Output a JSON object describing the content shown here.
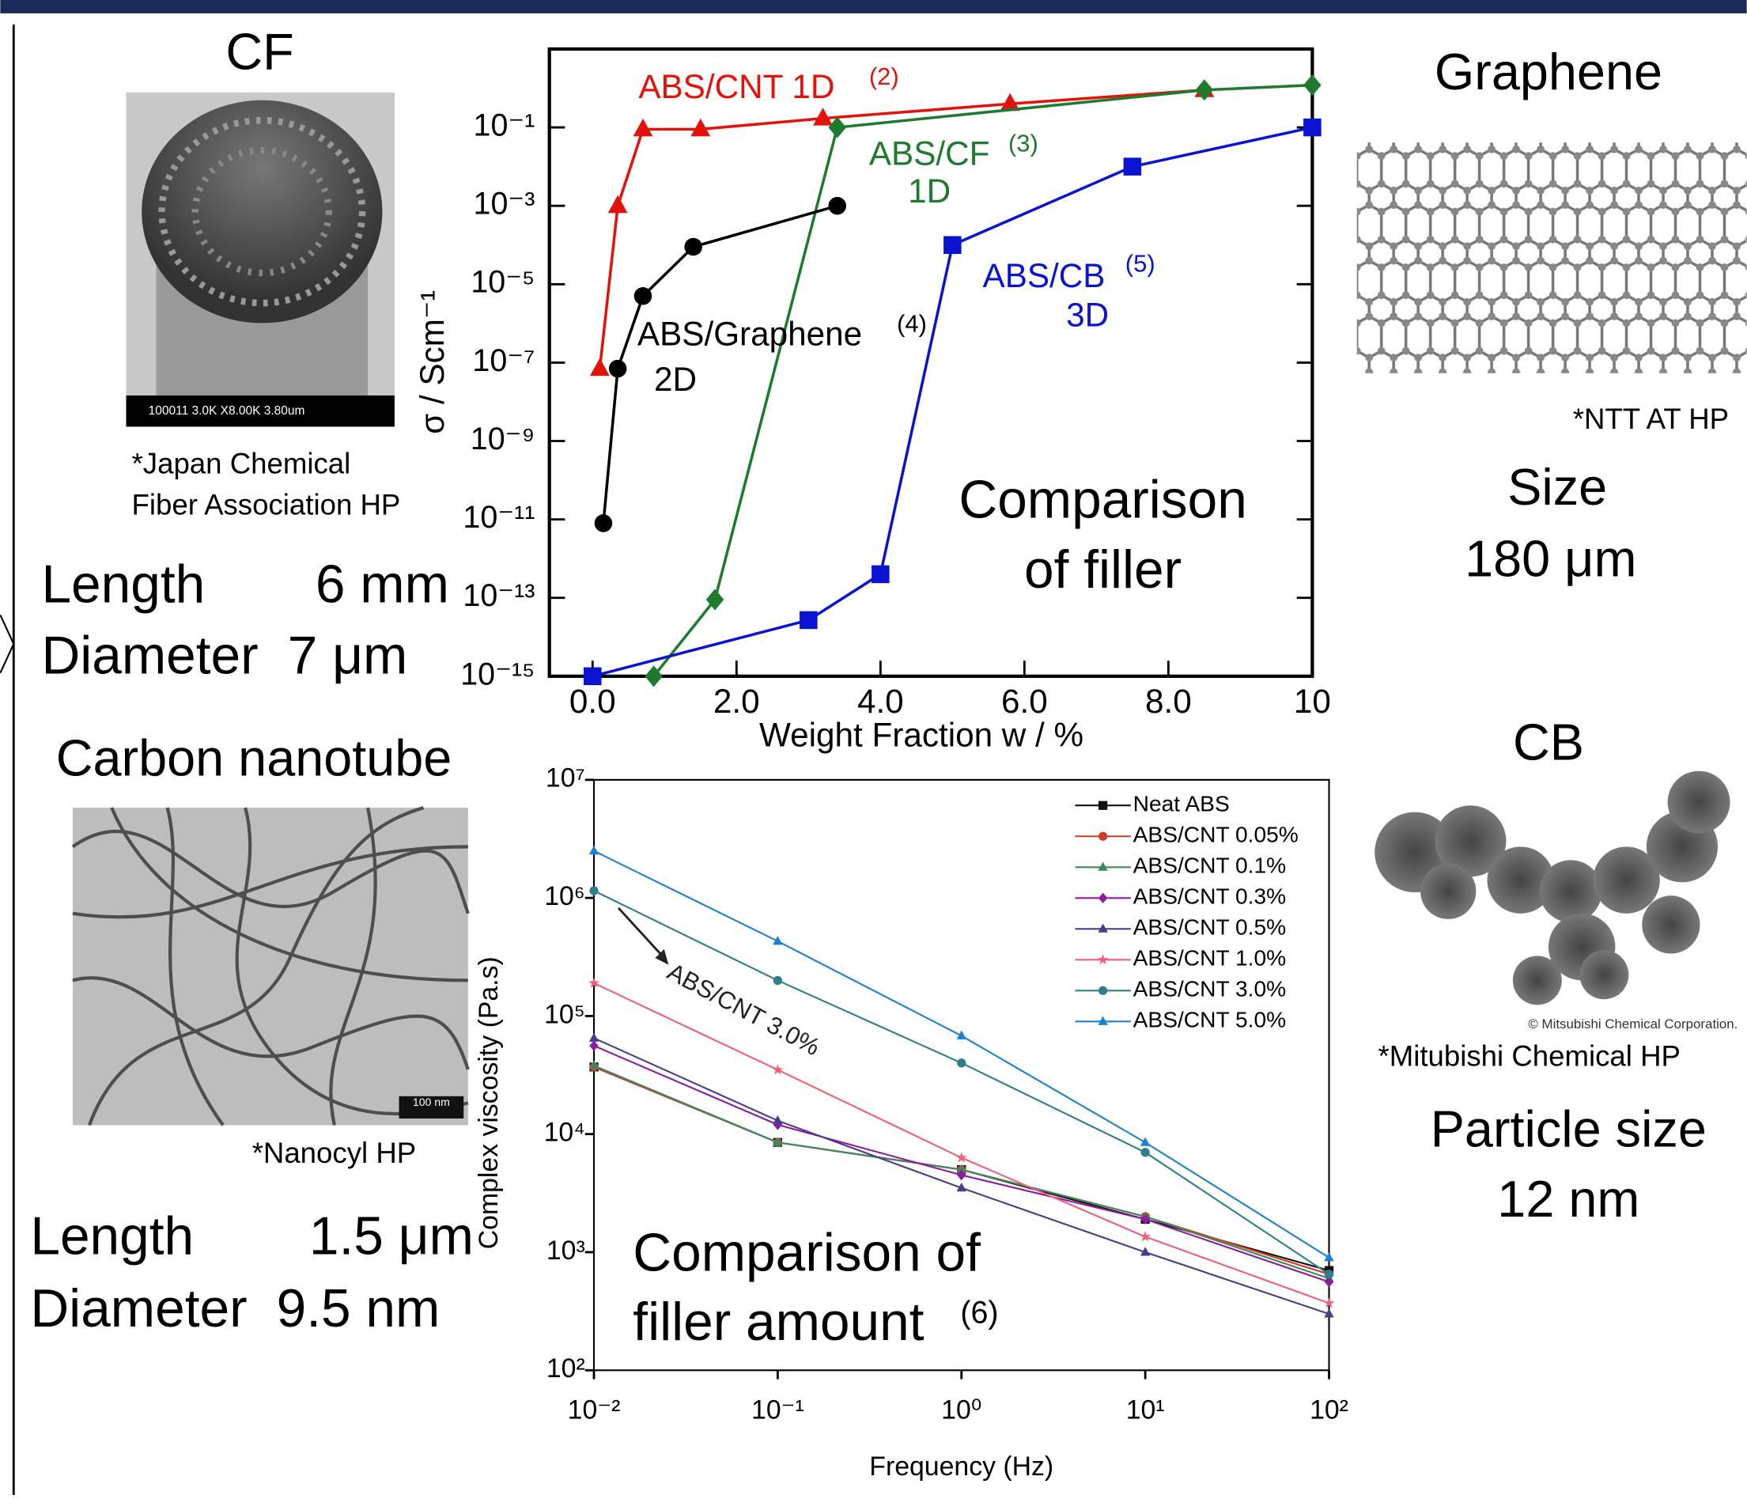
{
  "chart_data": [
    {
      "type": "line",
      "log_y": true,
      "xlabel": "Weight Fraction w / %",
      "ylabel": "σ / Scm⁻¹",
      "xlim": [
        -0.6,
        10
      ],
      "ylim": [
        1e-15,
        10
      ],
      "xticks": [
        {
          "value": 0,
          "label": "0.0"
        },
        {
          "value": 2,
          "label": "2.0"
        },
        {
          "value": 4,
          "label": "4.0"
        },
        {
          "value": 6,
          "label": "6.0"
        },
        {
          "value": 8,
          "label": "8.0"
        },
        10
      ],
      "yticks": [
        {
          "value": 1e-15,
          "label": "10⁻¹⁵"
        },
        {
          "value": 1e-13,
          "label": "10⁻¹³"
        },
        {
          "value": 1e-11,
          "label": "10⁻¹¹"
        },
        {
          "value": 1e-09,
          "label": "10⁻⁹"
        },
        {
          "value": 1e-07,
          "label": "10⁻⁷"
        },
        {
          "value": 1e-05,
          "label": "10⁻⁵"
        },
        {
          "value": 0.001,
          "label": "10⁻³"
        },
        {
          "value": 0.1,
          "label": "10⁻¹"
        }
      ],
      "series": [
        {
          "color": "#e3120b",
          "marker": "triangle",
          "x": [
            0.1,
            0.35,
            0.7,
            1.5,
            3.2,
            5.8,
            8.5
          ],
          "values": [
            7e-08,
            0.001,
            0.09,
            0.09,
            0.17,
            0.4,
            0.9
          ]
        },
        {
          "color": "#1e7a2e",
          "marker": "diamond",
          "x": [
            0.85,
            1.7,
            3.4,
            8.5,
            10
          ],
          "values": [
            1e-15,
            9e-14,
            0.1,
            0.9,
            1.2
          ]
        },
        {
          "color": "#000000",
          "marker": "circle",
          "x": [
            0.15,
            0.35,
            0.7,
            1.4,
            3.4
          ],
          "values": [
            8e-12,
            7e-08,
            5e-06,
            9e-05,
            0.001
          ]
        },
        {
          "color": "#0a14d0",
          "marker": "square",
          "x": [
            0,
            3.0,
            4.0,
            5.0,
            7.5,
            10
          ],
          "values": [
            1e-15,
            2.7e-14,
            4e-13,
            0.0001,
            0.01,
            0.1
          ]
        }
      ],
      "annotations": [
        {
          "lines": [
            "ABS/CNT 1D"
          ],
          "ref": "(2)",
          "color": "#e3120b"
        },
        {
          "lines": [
            "ABS/CF",
            "1D"
          ],
          "ref": "(3)",
          "color": "#1e7a2e"
        },
        {
          "lines": [
            "ABS/Graphene",
            "2D"
          ],
          "ref": "(4)",
          "color": "#000000"
        },
        {
          "lines": [
            "ABS/CB",
            "3D"
          ],
          "ref": "(5)",
          "color": "#0a14d0"
        },
        {
          "lines": [
            "Comparison",
            "of filler"
          ],
          "color": "#000000"
        }
      ]
    },
    {
      "type": "line",
      "log_x": true,
      "log_y": true,
      "xlabel": "Frequency (Hz)",
      "ylabel": "Complex viscosity (Pa.s)",
      "xlim": [
        0.01,
        100
      ],
      "ylim": [
        100,
        10000000
      ],
      "xticks": [
        {
          "value": 0.01,
          "label": "10⁻²"
        },
        {
          "value": 0.1,
          "label": "10⁻¹"
        },
        {
          "value": 1,
          "label": "10⁰"
        },
        {
          "value": 10,
          "label": "10¹"
        },
        {
          "value": 100,
          "label": "10²"
        }
      ],
      "yticks": [
        {
          "value": 100,
          "label": "10²"
        },
        {
          "value": 1000,
          "label": "10³"
        },
        {
          "value": 10000,
          "label": "10⁴"
        },
        {
          "value": 100000,
          "label": "10⁵"
        },
        {
          "value": 1000000,
          "label": "10⁶"
        },
        {
          "value": 10000000,
          "label": "10⁷"
        }
      ],
      "legend": "upper right",
      "x": [
        0.01,
        0.1,
        1,
        10,
        100
      ],
      "series": [
        {
          "name": "Neat ABS",
          "color": "#111111",
          "marker": "square",
          "values": [
            37000,
            8500,
            5000,
            1900,
            700
          ]
        },
        {
          "name": "ABS/CNT 0.05%",
          "color": "#d43a2a",
          "marker": "circle",
          "values": [
            37000,
            8500,
            5000,
            2000,
            650
          ]
        },
        {
          "name": "ABS/CNT 0.1%",
          "color": "#3c8a5c",
          "marker": "triangle",
          "values": [
            38000,
            8500,
            5000,
            2000,
            600
          ]
        },
        {
          "name": "ABS/CNT 0.3%",
          "color": "#8e1aa0",
          "marker": "diamond",
          "values": [
            56000,
            12000,
            4500,
            1900,
            560
          ]
        },
        {
          "name": "ABS/CNT 0.5%",
          "color": "#4b3b8c",
          "marker": "triangle",
          "values": [
            65000,
            13000,
            3500,
            1000,
            300
          ]
        },
        {
          "name": "ABS/CNT 1.0%",
          "color": "#f0607a",
          "marker": "star",
          "values": [
            190000,
            35000,
            6300,
            1350,
            370
          ]
        },
        {
          "name": "ABS/CNT 3.0%",
          "color": "#2e7f8a",
          "marker": "circle",
          "values": [
            1150000,
            200000,
            40000,
            7000,
            650
          ]
        },
        {
          "name": "ABS/CNT 5.0%",
          "color": "#1e80d0",
          "marker": "triangle",
          "values": [
            2500000,
            430000,
            68000,
            8500,
            900
          ]
        }
      ],
      "annotations": [
        {
          "lines": [
            "ABS/CNT 3.0%"
          ],
          "color": "#222222"
        },
        {
          "lines": [
            "Comparison of",
            "filler amount"
          ],
          "ref": "(6)",
          "color": "#000000"
        }
      ]
    }
  ],
  "panels": {
    "cf": {
      "title": "CF",
      "image_caption": "100011 3.0K X8.00K 3.80um",
      "credit": [
        "*Japan Chemical",
        "Fiber Association HP"
      ],
      "specs": [
        [
          "Length",
          "6 mm"
        ],
        [
          "Diameter",
          "7 μm"
        ]
      ]
    },
    "cnt": {
      "title": "Carbon nanotube",
      "scale_bar": "100 nm",
      "credit": "*Nanocyl HP",
      "specs": [
        [
          "Length",
          "1.5 μm"
        ],
        [
          "Diameter",
          "9.5 nm"
        ]
      ]
    },
    "graphene": {
      "title": "Graphene",
      "credit": "*NTT AT HP",
      "specs": [
        "Size",
        "180 μm"
      ]
    },
    "cb": {
      "title": "CB",
      "copyright": "© Mitsubishi Chemical Corporation.",
      "credit": "*Mitubishi Chemical  HP",
      "specs": [
        "Particle size",
        "12 nm"
      ]
    }
  }
}
